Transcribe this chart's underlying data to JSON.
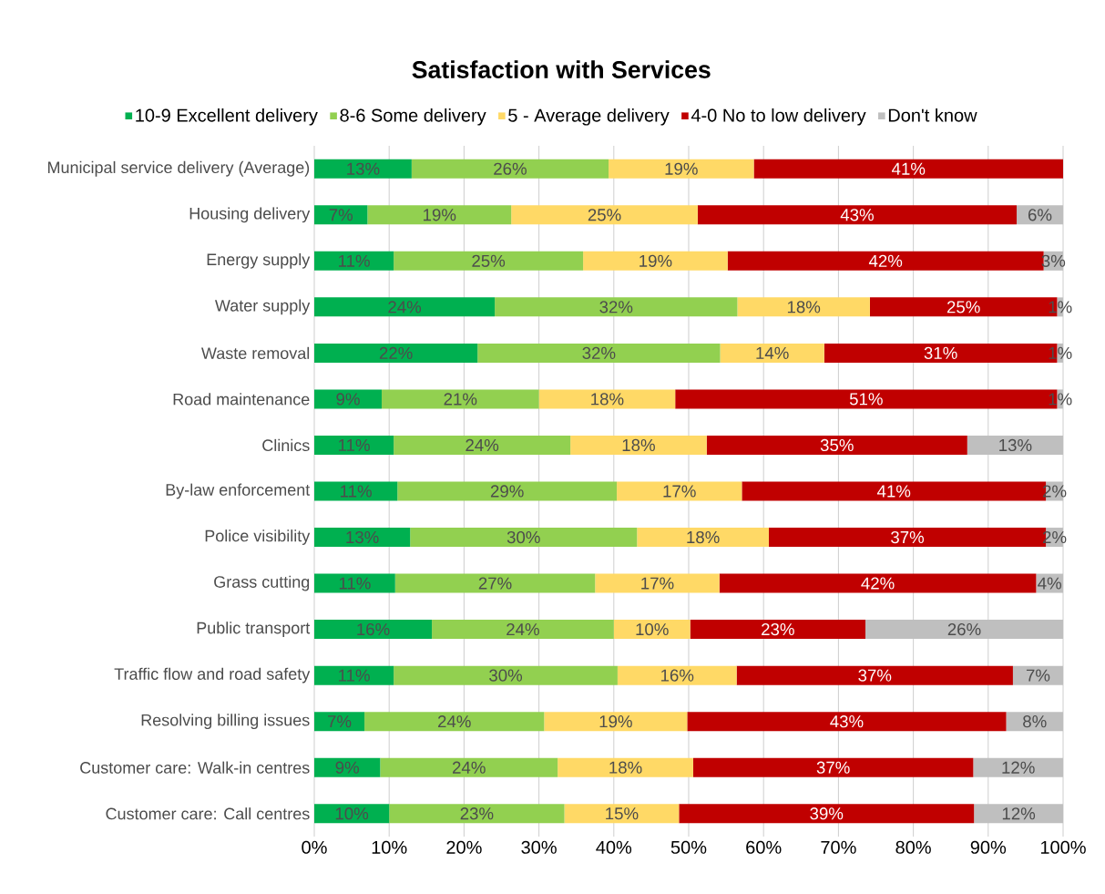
{
  "chart_data": {
    "type": "bar",
    "orientation": "horizontal",
    "stacked": true,
    "title": "Satisfaction with Services",
    "categories": [
      "Municipal service delivery (Average)",
      "Housing delivery",
      "Energy supply",
      "Water supply",
      "Waste removal",
      "Road maintenance",
      "Clinics",
      "By-law enforcement",
      "Police visibility",
      "Grass cutting",
      "Public transport",
      "Traffic flow and road safety",
      "Resolving billing issues",
      "Customer care: Walk-in centres",
      "Customer care: Call centres"
    ],
    "series": [
      {
        "name": "10-9 Excellent delivery",
        "color": "#00b050",
        "values": [
          13,
          7.1,
          10.6,
          24.1,
          21.8,
          9.0,
          10.6,
          11.1,
          12.8,
          10.8,
          15.7,
          10.6,
          6.7,
          8.8,
          10.0
        ],
        "value_labels": [
          "13%",
          "7%",
          "11%",
          "24%",
          "22%",
          "9%",
          "11%",
          "11%",
          "13%",
          "11%",
          "16%",
          "11%",
          "7%",
          "9%",
          "10%"
        ]
      },
      {
        "name": "8-6 Some delivery",
        "color": "#92d050",
        "values": [
          26.3,
          19.2,
          25.3,
          32.4,
          32.4,
          21.0,
          23.6,
          29.3,
          30.3,
          26.7,
          24.3,
          29.9,
          24.0,
          23.7,
          23.4
        ],
        "value_labels": [
          "26%",
          "19%",
          "25%",
          "32%",
          "32%",
          "21%",
          "24%",
          "29%",
          "30%",
          "27%",
          "24%",
          "30%",
          "24%",
          "24%",
          "23%"
        ]
      },
      {
        "name": "5 - Average delivery",
        "color": "#ffd966",
        "values": [
          19.4,
          24.9,
          19.3,
          17.7,
          13.9,
          18.2,
          18.2,
          16.7,
          17.6,
          16.6,
          10.2,
          15.9,
          19.1,
          18.1,
          15.3
        ],
        "value_labels": [
          "19%",
          "25%",
          "19%",
          "18%",
          "14%",
          "18%",
          "18%",
          "17%",
          "18%",
          "17%",
          "10%",
          "16%",
          "19%",
          "18%",
          "15%"
        ]
      },
      {
        "name": "4-0 No to low delivery",
        "color": "#c00000",
        "values": [
          41.3,
          42.6,
          42.2,
          25.0,
          31.1,
          51.0,
          34.8,
          40.6,
          37.0,
          42.3,
          23.4,
          36.9,
          42.6,
          37.4,
          39.4
        ],
        "value_labels": [
          "41%",
          "43%",
          "42%",
          "25%",
          "31%",
          "51%",
          "35%",
          "41%",
          "37%",
          "42%",
          "23%",
          "37%",
          "43%",
          "37%",
          "39%"
        ]
      },
      {
        "name": "Don't know",
        "color": "#bfbfbf",
        "values": [
          null,
          6.2,
          2.6,
          0.8,
          0.8,
          0.8,
          12.8,
          2.3,
          2.3,
          3.6,
          26.4,
          6.7,
          7.6,
          12.0,
          11.9
        ],
        "value_labels": [
          null,
          "6%",
          "3%",
          "1%",
          "1%",
          "1%",
          "13%",
          "2%",
          "2%",
          "4%",
          "26%",
          "7%",
          "8%",
          "12%",
          "12%"
        ]
      }
    ],
    "xlim": [
      0,
      100
    ],
    "xticks": [
      {
        "value": 0,
        "label": "0%"
      },
      {
        "value": 10,
        "label": "10%"
      },
      {
        "value": 20,
        "label": "20%"
      },
      {
        "value": 30,
        "label": "30%"
      },
      {
        "value": 40,
        "label": "40%"
      },
      {
        "value": 50,
        "label": "50%"
      },
      {
        "value": 60,
        "label": "60%"
      },
      {
        "value": 70,
        "label": "70%"
      },
      {
        "value": 80,
        "label": "80%"
      },
      {
        "value": 90,
        "label": "90%"
      },
      {
        "value": 100,
        "label": "100%"
      }
    ],
    "grid": "x",
    "legend": "top"
  }
}
